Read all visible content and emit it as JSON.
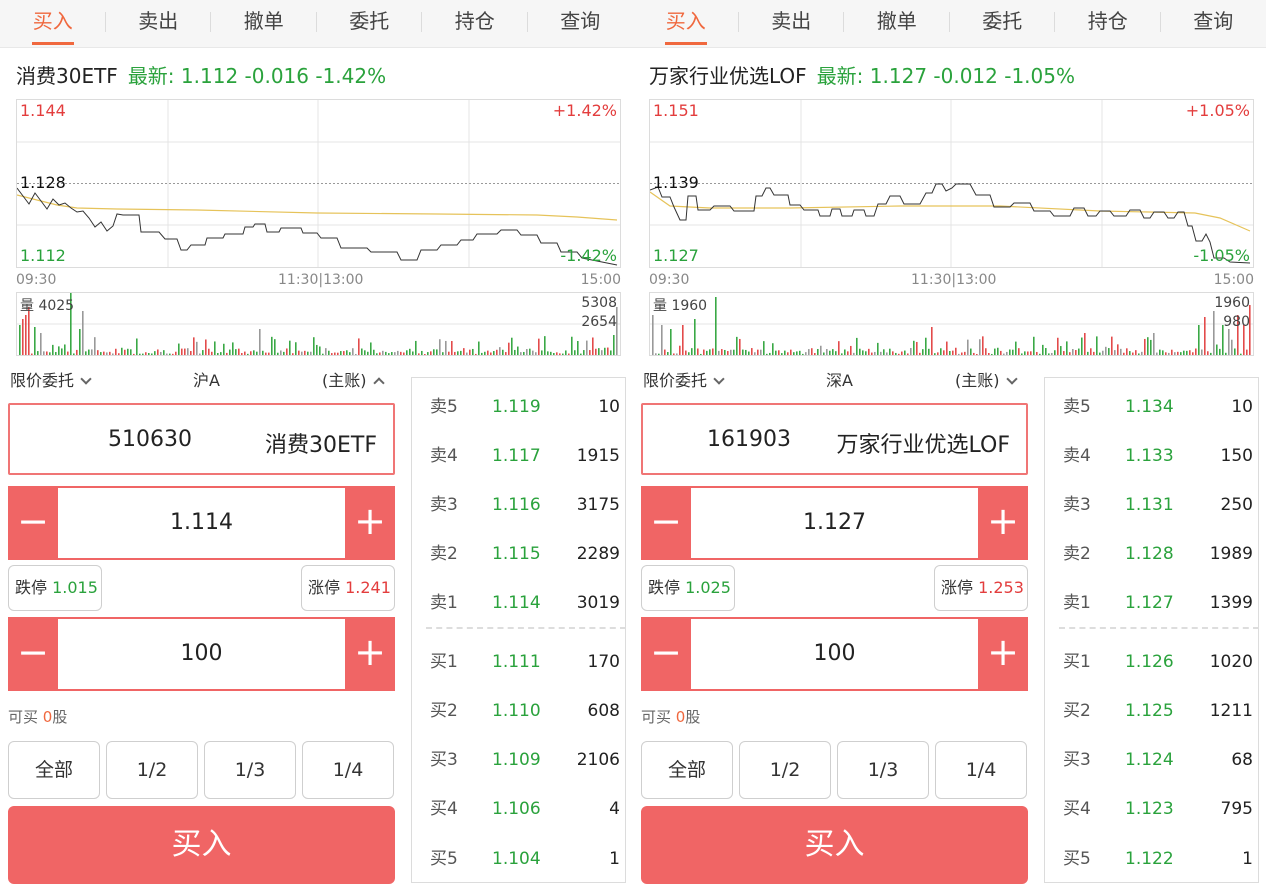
{
  "tabs": [
    "买入",
    "卖出",
    "撤单",
    "委托",
    "持仓",
    "查询"
  ],
  "panels": [
    {
      "stock": {
        "name": "消费30ETF",
        "latest": "最新: 1.112 -0.016 -1.42%"
      },
      "chart": {
        "price_high": "1.144",
        "price_ref": "1.128",
        "price_low": "1.112",
        "pct_high": "+1.42%",
        "pct_low": "-1.42%",
        "time_start": "09:30",
        "time_mid": "11:30|13:00",
        "time_end": "15:00",
        "vol_label": "量 4025",
        "vol_max": "5308",
        "vol_half": "2654"
      },
      "order_type": "限价委托",
      "market": "沪A",
      "account": "(主账)",
      "code": "510630",
      "code_name": "消费30ETF",
      "price": "1.114",
      "limit_down_label": "跌停",
      "limit_down": "1.015",
      "limit_up_label": "涨停",
      "limit_up": "1.241",
      "quantity": "100",
      "can_buy_label": "可买",
      "can_buy_value": "0",
      "can_buy_unit": "股",
      "fractions": [
        "全部",
        "1/2",
        "1/3",
        "1/4"
      ],
      "buy_label": "买入",
      "asks": [
        {
          "label": "卖5",
          "price": "1.119",
          "qty": "10"
        },
        {
          "label": "卖4",
          "price": "1.117",
          "qty": "1915"
        },
        {
          "label": "卖3",
          "price": "1.116",
          "qty": "3175"
        },
        {
          "label": "卖2",
          "price": "1.115",
          "qty": "2289"
        },
        {
          "label": "卖1",
          "price": "1.114",
          "qty": "3019"
        }
      ],
      "bids": [
        {
          "label": "买1",
          "price": "1.111",
          "qty": "170"
        },
        {
          "label": "买2",
          "price": "1.110",
          "qty": "608"
        },
        {
          "label": "买3",
          "price": "1.109",
          "qty": "2106"
        },
        {
          "label": "买4",
          "price": "1.106",
          "qty": "4"
        },
        {
          "label": "买5",
          "price": "1.104",
          "qty": "1"
        }
      ]
    },
    {
      "stock": {
        "name": "万家行业优选LOF",
        "latest": "最新: 1.127 -0.012 -1.05%"
      },
      "chart": {
        "price_high": "1.151",
        "price_ref": "1.139",
        "price_low": "1.127",
        "pct_high": "+1.05%",
        "pct_low": "-1.05%",
        "time_start": "09:30",
        "time_mid": "11:30|13:00",
        "time_end": "15:00",
        "vol_label": "量 1960",
        "vol_max": "1960",
        "vol_half": "980"
      },
      "order_type": "限价委托",
      "market": "深A",
      "account": "(主账)",
      "code": "161903",
      "code_name": "万家行业优选LOF",
      "price": "1.127",
      "limit_down_label": "跌停",
      "limit_down": "1.025",
      "limit_up_label": "涨停",
      "limit_up": "1.253",
      "quantity": "100",
      "can_buy_label": "可买",
      "can_buy_value": "0",
      "can_buy_unit": "股",
      "fractions": [
        "全部",
        "1/2",
        "1/3",
        "1/4"
      ],
      "buy_label": "买入",
      "asks": [
        {
          "label": "卖5",
          "price": "1.134",
          "qty": "10"
        },
        {
          "label": "卖4",
          "price": "1.133",
          "qty": "150"
        },
        {
          "label": "卖3",
          "price": "1.131",
          "qty": "250"
        },
        {
          "label": "卖2",
          "price": "1.128",
          "qty": "1989"
        },
        {
          "label": "卖1",
          "price": "1.127",
          "qty": "1399"
        }
      ],
      "bids": [
        {
          "label": "买1",
          "price": "1.126",
          "qty": "1020"
        },
        {
          "label": "买2",
          "price": "1.125",
          "qty": "1211"
        },
        {
          "label": "买3",
          "price": "1.124",
          "qty": "68"
        },
        {
          "label": "买4",
          "price": "1.123",
          "qty": "795"
        },
        {
          "label": "买5",
          "price": "1.122",
          "qty": "1"
        }
      ]
    }
  ],
  "colors": {
    "accent": "#f0683e",
    "buy_red": "#f06565",
    "up_red": "#e33d3d",
    "down_green": "#2aa23c",
    "avg_line": "#e6c35a"
  }
}
